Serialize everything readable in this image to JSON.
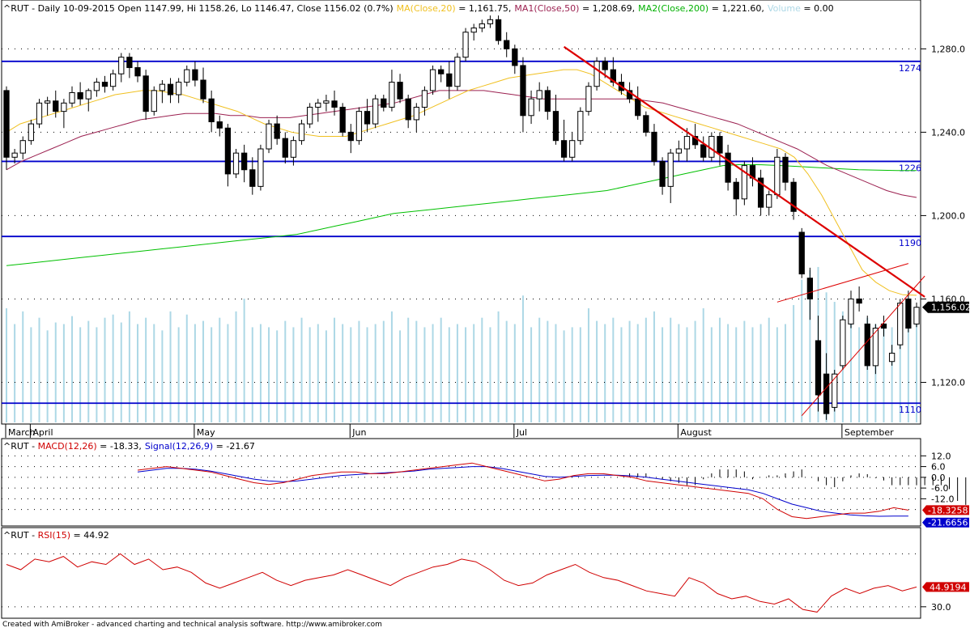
{
  "chart_data": [
    {
      "type": "candlestick",
      "symbol": "^RUT",
      "header": {
        "symbol": "^RUT",
        "info": " - Daily 10-09-2015 Open 1147.99, Hi 1158.26, Lo 1146.47, Close 1156.02 (0.7%)",
        "ma20_label": "MA(Close,20)",
        "ma20_value": " = 1,161.75,",
        "ma50_label": "MA1(Close,50)",
        "ma50_value": " = 1,208.69,",
        "ma200_label": "MA2(Close,200)",
        "ma200_value": " = 1,221.60,",
        "volume_label": "Volume",
        "volume_value": " = 0.00"
      },
      "ylim": [
        1100,
        1298
      ],
      "y_ticks": [
        {
          "value": 1280,
          "label": "1,280.0"
        },
        {
          "value": 1240,
          "label": "1,240.0"
        },
        {
          "value": 1200,
          "label": "1,200.0"
        },
        {
          "value": 1160,
          "label": "1,160.0"
        },
        {
          "value": 1120,
          "label": "1,120.0"
        }
      ],
      "last_price_label": "1,156.02",
      "last_price": 1156.02,
      "horizontal_levels": [
        {
          "value": 1274,
          "label": "1274"
        },
        {
          "value": 1226,
          "label": "1226"
        },
        {
          "value": 1190,
          "label": "1190"
        },
        {
          "value": 1110,
          "label": "1110"
        }
      ],
      "x_months": [
        "March",
        "April",
        "May",
        "Jun",
        "Jul",
        "August",
        "September"
      ],
      "candles": [
        [
          1260,
          1262,
          1222,
          1228
        ],
        [
          1228,
          1232,
          1225,
          1230
        ],
        [
          1230,
          1238,
          1227,
          1236
        ],
        [
          1236,
          1246,
          1234,
          1244
        ],
        [
          1244,
          1256,
          1242,
          1254
        ],
        [
          1254,
          1257,
          1248,
          1255
        ],
        [
          1255,
          1260,
          1247,
          1250
        ],
        [
          1250,
          1256,
          1242,
          1254
        ],
        [
          1254,
          1262,
          1252,
          1259
        ],
        [
          1259,
          1264,
          1253,
          1256
        ],
        [
          1256,
          1261,
          1250,
          1260
        ],
        [
          1260,
          1266,
          1257,
          1264
        ],
        [
          1264,
          1267,
          1259,
          1262
        ],
        [
          1262,
          1270,
          1260,
          1268
        ],
        [
          1268,
          1278,
          1264,
          1276
        ],
        [
          1276,
          1278,
          1266,
          1271
        ],
        [
          1271,
          1274,
          1264,
          1267
        ],
        [
          1267,
          1270,
          1246,
          1250
        ],
        [
          1250,
          1262,
          1248,
          1260
        ],
        [
          1260,
          1265,
          1254,
          1263
        ],
        [
          1263,
          1266,
          1254,
          1258
        ],
        [
          1258,
          1266,
          1254,
          1264
        ],
        [
          1264,
          1272,
          1262,
          1270
        ],
        [
          1270,
          1274,
          1262,
          1265
        ],
        [
          1265,
          1271,
          1254,
          1256
        ],
        [
          1256,
          1260,
          1240,
          1245
        ],
        [
          1245,
          1248,
          1238,
          1242
        ],
        [
          1242,
          1244,
          1214,
          1220
        ],
        [
          1220,
          1232,
          1218,
          1230
        ],
        [
          1230,
          1234,
          1216,
          1222
        ],
        [
          1222,
          1228,
          1210,
          1214
        ],
        [
          1214,
          1234,
          1212,
          1232
        ],
        [
          1232,
          1246,
          1230,
          1244
        ],
        [
          1244,
          1248,
          1234,
          1237
        ],
        [
          1237,
          1240,
          1225,
          1228
        ],
        [
          1228,
          1238,
          1224,
          1236
        ],
        [
          1236,
          1246,
          1234,
          1244
        ],
        [
          1244,
          1254,
          1242,
          1252
        ],
        [
          1252,
          1256,
          1245,
          1254
        ],
        [
          1254,
          1258,
          1250,
          1255
        ],
        [
          1255,
          1260,
          1248,
          1252
        ],
        [
          1252,
          1254,
          1238,
          1240
        ],
        [
          1240,
          1244,
          1230,
          1236
        ],
        [
          1236,
          1252,
          1234,
          1250
        ],
        [
          1250,
          1256,
          1240,
          1244
        ],
        [
          1244,
          1258,
          1242,
          1256
        ],
        [
          1256,
          1258,
          1250,
          1252
        ],
        [
          1252,
          1270,
          1250,
          1264
        ],
        [
          1264,
          1268,
          1254,
          1256
        ],
        [
          1256,
          1258,
          1242,
          1246
        ],
        [
          1246,
          1254,
          1240,
          1252
        ],
        [
          1252,
          1262,
          1248,
          1260
        ],
        [
          1260,
          1272,
          1258,
          1270
        ],
        [
          1270,
          1272,
          1264,
          1268
        ],
        [
          1268,
          1274,
          1256,
          1262
        ],
        [
          1262,
          1278,
          1260,
          1276
        ],
        [
          1276,
          1290,
          1274,
          1288
        ],
        [
          1288,
          1292,
          1284,
          1290
        ],
        [
          1290,
          1294,
          1288,
          1292
        ],
        [
          1292,
          1296,
          1290,
          1294
        ],
        [
          1294,
          1296,
          1282,
          1284
        ],
        [
          1284,
          1288,
          1276,
          1280
        ],
        [
          1280,
          1282,
          1268,
          1272
        ],
        [
          1272,
          1276,
          1240,
          1248
        ],
        [
          1248,
          1260,
          1244,
          1256
        ],
        [
          1256,
          1264,
          1250,
          1260
        ],
        [
          1260,
          1262,
          1246,
          1250
        ],
        [
          1250,
          1258,
          1234,
          1236
        ],
        [
          1236,
          1246,
          1226,
          1228
        ],
        [
          1228,
          1240,
          1226,
          1236
        ],
        [
          1236,
          1252,
          1234,
          1250
        ],
        [
          1250,
          1264,
          1248,
          1262
        ],
        [
          1262,
          1276,
          1260,
          1274
        ],
        [
          1274,
          1276,
          1266,
          1270
        ],
        [
          1270,
          1276,
          1262,
          1264
        ],
        [
          1264,
          1268,
          1258,
          1260
        ],
        [
          1260,
          1264,
          1254,
          1256
        ],
        [
          1256,
          1262,
          1246,
          1248
        ],
        [
          1248,
          1250,
          1238,
          1240
        ],
        [
          1240,
          1244,
          1224,
          1226
        ],
        [
          1226,
          1228,
          1210,
          1214
        ],
        [
          1214,
          1232,
          1206,
          1230
        ],
        [
          1230,
          1236,
          1226,
          1232
        ],
        [
          1232,
          1242,
          1226,
          1238
        ],
        [
          1238,
          1244,
          1232,
          1234
        ],
        [
          1234,
          1238,
          1226,
          1228
        ],
        [
          1228,
          1240,
          1226,
          1238
        ],
        [
          1238,
          1240,
          1224,
          1230
        ],
        [
          1230,
          1234,
          1212,
          1216
        ],
        [
          1216,
          1218,
          1200,
          1208
        ],
        [
          1208,
          1226,
          1205,
          1224
        ],
        [
          1224,
          1228,
          1214,
          1218
        ],
        [
          1218,
          1222,
          1200,
          1204
        ],
        [
          1204,
          1212,
          1200,
          1210
        ],
        [
          1210,
          1232,
          1208,
          1228
        ],
        [
          1228,
          1230,
          1212,
          1216
        ],
        [
          1216,
          1218,
          1198,
          1202
        ],
        [
          1192,
          1194,
          1170,
          1172
        ],
        [
          1170,
          1175,
          1150,
          1160
        ],
        [
          1140,
          1152,
          1106,
          1114
        ],
        [
          1124,
          1134,
          1102,
          1105
        ],
        [
          1108,
          1126,
          1106,
          1124
        ],
        [
          1128,
          1152,
          1126,
          1150
        ],
        [
          1148,
          1164,
          1146,
          1160
        ],
        [
          1160,
          1166,
          1154,
          1158
        ],
        [
          1148,
          1152,
          1126,
          1128
        ],
        [
          1128,
          1148,
          1124,
          1146
        ],
        [
          1148,
          1152,
          1142,
          1146
        ],
        [
          1130,
          1138,
          1128,
          1134
        ],
        [
          1138,
          1160,
          1136,
          1158
        ],
        [
          1160,
          1164,
          1144,
          1146
        ],
        [
          1147.99,
          1158.26,
          1146.47,
          1156.02
        ]
      ],
      "ma20": [
        1240,
        1244,
        1246,
        1248,
        1250,
        1252,
        1254,
        1256,
        1258,
        1259,
        1260,
        1260,
        1259,
        1258,
        1256,
        1254,
        1252,
        1250,
        1247,
        1244,
        1242,
        1240,
        1239,
        1238,
        1238,
        1238,
        1240,
        1242,
        1244,
        1246,
        1248,
        1251,
        1254,
        1257,
        1260,
        1262,
        1264,
        1266,
        1267,
        1268,
        1269,
        1270,
        1270,
        1268,
        1264,
        1260,
        1256,
        1252,
        1250,
        1248,
        1246,
        1244,
        1242,
        1240,
        1238,
        1236,
        1234,
        1232,
        1228,
        1220,
        1210,
        1198,
        1186,
        1174,
        1168,
        1164,
        1162,
        1161.75
      ],
      "ma50": [
        1222,
        1226,
        1229,
        1232,
        1235,
        1238,
        1240,
        1242,
        1244,
        1246,
        1247,
        1248,
        1249,
        1249,
        1249,
        1248,
        1248,
        1247,
        1247,
        1247,
        1248,
        1249,
        1250,
        1251,
        1252,
        1253,
        1254,
        1256,
        1258,
        1260,
        1260,
        1260,
        1260,
        1259,
        1258,
        1257,
        1256,
        1256,
        1256,
        1256,
        1256,
        1256,
        1256,
        1255,
        1254,
        1252,
        1250,
        1248,
        1246,
        1244,
        1241,
        1238,
        1235,
        1232,
        1228,
        1224,
        1221,
        1218,
        1215,
        1212,
        1210,
        1208.69
      ],
      "ma200": [
        1176,
        1177,
        1178,
        1179,
        1180,
        1181,
        1182,
        1183,
        1184,
        1185,
        1186,
        1187,
        1188,
        1189,
        1190,
        1191,
        1193,
        1195,
        1197,
        1199,
        1201,
        1202,
        1203,
        1204,
        1205,
        1206,
        1207,
        1208,
        1209,
        1210,
        1211,
        1212,
        1214,
        1216,
        1218,
        1220,
        1222,
        1224,
        1224.5,
        1224.4,
        1224,
        1223.5,
        1223,
        1222.5,
        1222,
        1221.8,
        1221.6,
        1221.6
      ],
      "volume_fraction": [
        0.72,
        0.62,
        0.7,
        0.6,
        0.66,
        0.58,
        0.63,
        0.62,
        0.67,
        0.6,
        0.64,
        0.6,
        0.66,
        0.68,
        0.63,
        0.7,
        0.62,
        0.66,
        0.62,
        0.58,
        0.7,
        0.6,
        0.68,
        0.62,
        0.64,
        0.6,
        0.66,
        0.62,
        0.7,
        0.78,
        0.6,
        0.62,
        0.6,
        0.58,
        0.64,
        0.6,
        0.66,
        0.6,
        0.62,
        0.58,
        0.66,
        0.62,
        0.6,
        0.64,
        0.6,
        0.62,
        0.64,
        0.7,
        0.58,
        0.66,
        0.64,
        0.6,
        0.62,
        0.66,
        0.6,
        0.62,
        0.6,
        0.62,
        0.66,
        0.6,
        0.7,
        0.64,
        0.62,
        0.8,
        0.6,
        0.66,
        0.64,
        0.62,
        0.58,
        0.6,
        0.6,
        0.72,
        0.64,
        0.62,
        0.66,
        0.6,
        0.64,
        0.62,
        0.66,
        0.7,
        0.6,
        0.66,
        0.62,
        0.6,
        0.64,
        0.72,
        0.6,
        0.66,
        0.62,
        0.6,
        0.64,
        0.6,
        0.62,
        0.66,
        0.6,
        0.62,
        0.74,
        0.9,
        0.96,
        0.98,
        0.82,
        0.76,
        0.7,
        0.64,
        0.6,
        0.66,
        0.62,
        0.6,
        0.6,
        0.58,
        0.66,
        0.62
      ],
      "trendlines": [
        {
          "color": "#dd0000",
          "width": 2.2,
          "from": [
            68,
            1281
          ],
          "to": [
            112,
            1161
          ]
        },
        {
          "color": "#dd0000",
          "width": 1,
          "from": [
            94,
            1158.5
          ],
          "to": [
            110,
            1177
          ]
        },
        {
          "color": "#dd0000",
          "width": 1,
          "from": [
            97,
            1104
          ],
          "to": [
            112,
            1171
          ]
        }
      ]
    },
    {
      "type": "line",
      "title_symbol": "^RUT",
      "header_macd_label": "MACD(12,26)",
      "header_macd_value": " = -18.33,",
      "header_signal_label": "Signal(12,26,9)",
      "header_signal_value": " = -21.67",
      "ylim": [
        -24.5,
        13.5
      ],
      "y_ticks": [
        {
          "value": 12,
          "label": "12.0"
        },
        {
          "value": 6,
          "label": "6.0"
        },
        {
          "value": 0,
          "label": "0.0"
        },
        {
          "value": -6,
          "label": "-6.0"
        },
        {
          "value": -12,
          "label": "-12.0"
        }
      ],
      "macd_last_label": "-18.3258",
      "signal_last_label": "-21.6656",
      "macd": [
        4,
        5,
        6,
        5,
        4,
        3,
        1,
        -1,
        -3,
        -4,
        -3,
        -1,
        1,
        2,
        3,
        3,
        2,
        2,
        3,
        4,
        5,
        6,
        7,
        8,
        6,
        4,
        2,
        0,
        -2,
        -1,
        1,
        2,
        2,
        1,
        0,
        -2,
        -3,
        -4,
        -5,
        -6,
        -7,
        -8,
        -9,
        -12,
        -18,
        -22,
        -23,
        -22,
        -21,
        -20,
        -20,
        -19,
        -17,
        -18.33
      ],
      "signal": [
        3,
        4,
        5,
        5,
        4.5,
        3.5,
        2,
        0.5,
        -1,
        -2,
        -2.5,
        -2,
        -1,
        0,
        1,
        1.5,
        2,
        2.5,
        3,
        3.5,
        4.5,
        5,
        5.5,
        6,
        6,
        5,
        3.5,
        2,
        0.5,
        0,
        0.5,
        1,
        1.2,
        1.2,
        0.8,
        0,
        -1,
        -2,
        -3,
        -4,
        -5,
        -6,
        -7,
        -9,
        -12,
        -15,
        -17,
        -19,
        -20,
        -21,
        -21.5,
        -21.8,
        -21.7,
        -21.67
      ],
      "histogram_range": [
        60,
        108
      ]
    },
    {
      "type": "line",
      "title_symbol": "^RUT",
      "header_rsi_label": "RSI(15)",
      "header_rsi_value": " = 44.92",
      "ylim": [
        25,
        80
      ],
      "y_ticks": [
        {
          "value": 30,
          "label": "30.0"
        }
      ],
      "rsi_last_label": "44.9194",
      "rsi": [
        62,
        58,
        66,
        64,
        68,
        60,
        64,
        62,
        70,
        62,
        66,
        58,
        60,
        56,
        48,
        44,
        48,
        52,
        56,
        50,
        46,
        50,
        52,
        54,
        58,
        54,
        50,
        46,
        52,
        56,
        60,
        62,
        66,
        64,
        58,
        50,
        46,
        48,
        54,
        58,
        62,
        56,
        52,
        50,
        46,
        42,
        40,
        38,
        52,
        48,
        40,
        36,
        38,
        34,
        32,
        36,
        28,
        26,
        38,
        44,
        40,
        44,
        46,
        42,
        44.92
      ]
    }
  ],
  "footer": {
    "text": "Created with AmiBroker - advanced charting and technical analysis software. http://www.amibroker.com"
  },
  "colors": {
    "candle": "#000000",
    "volume": "#add8e6",
    "ma20": "#f0c020",
    "ma50": "#9b2050",
    "ma200": "#00c000",
    "level_line": "#0000cc",
    "trendline": "#dd0000",
    "macd": "#d00000",
    "signal": "#0000cc",
    "rsi": "#d00000",
    "last_price_bg": "#000000",
    "macd_label_bg": "#d00000",
    "signal_label_bg": "#0000cc",
    "rsi_label_bg": "#d00000"
  }
}
